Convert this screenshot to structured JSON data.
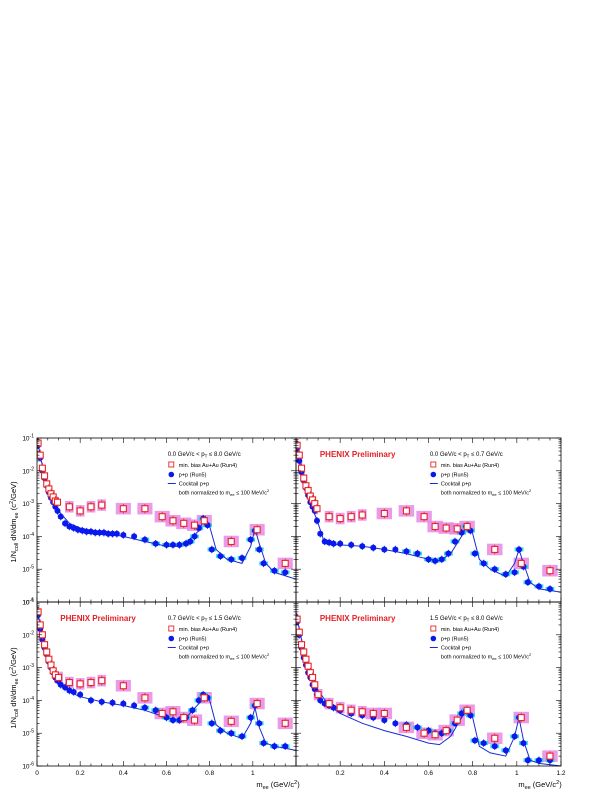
{
  "figure": {
    "ylabel_parts": [
      "1/N",
      "coll",
      " dN/dm",
      "ee",
      " (c",
      "2",
      "/GeV)"
    ],
    "xlabel_parts": [
      "m",
      "ee",
      " (GeV/c",
      "2",
      ")"
    ],
    "x_ticks": [
      "0",
      "0.2",
      "0.4",
      "0.6",
      "0.8",
      "1",
      "1.2"
    ],
    "y_ticks": [
      {
        "base": "10",
        "exp": "-1"
      },
      {
        "base": "10",
        "exp": "-2"
      },
      {
        "base": "10",
        "exp": "-3"
      },
      {
        "base": "10",
        "exp": "-4"
      },
      {
        "base": "10",
        "exp": "-5"
      },
      {
        "base": "10",
        "exp": "-6"
      }
    ]
  },
  "legend": {
    "auau": "min. bias Au+Au (Run4)",
    "pp": "p+p (Run5)",
    "cocktail": "Cocktail p+p",
    "norm_parts": [
      "both normalized to m",
      "ee",
      " ≤ 100 MeV/c",
      "2"
    ]
  },
  "colors": {
    "auau": "#e8262b",
    "auau_band": "#e58ae6",
    "pp": "#0a18ee",
    "pp_band": "#18d6e6",
    "cocktail": "#1a2bd6",
    "prelim": "#e31e24"
  },
  "chart_data": [
    {
      "type": "scatter",
      "panel": "top-left",
      "pt_range_parts": [
        "0.0 GeV/c < p",
        "T",
        " ≤ 8.0 GeV/c"
      ],
      "prelim": "",
      "xlim": [
        0,
        1.2
      ],
      "ylim": [
        1e-06,
        0.1
      ],
      "log_y": true,
      "series": [
        {
          "name": "min. bias Au+Au (Run4)",
          "x": [
            0.005,
            0.015,
            0.025,
            0.035,
            0.045,
            0.055,
            0.065,
            0.075,
            0.085,
            0.095,
            0.15,
            0.2,
            0.25,
            0.3,
            0.4,
            0.5,
            0.58,
            0.63,
            0.68,
            0.73,
            0.775,
            0.9,
            1.02,
            1.15
          ],
          "y": [
            0.07,
            0.03,
            0.012,
            0.007,
            0.004,
            0.0028,
            0.002,
            0.0016,
            0.0012,
            0.0011,
            0.0008,
            0.0006,
            0.0008,
            0.0009,
            0.0007,
            0.0007,
            0.0004,
            0.0003,
            0.00025,
            0.00022,
            0.0003,
            7e-05,
            0.00016,
            1.5e-05
          ]
        },
        {
          "name": "p+p (Run5)",
          "x": [
            0.005,
            0.015,
            0.025,
            0.035,
            0.045,
            0.055,
            0.065,
            0.075,
            0.085,
            0.095,
            0.11,
            0.13,
            0.15,
            0.17,
            0.19,
            0.21,
            0.23,
            0.25,
            0.27,
            0.29,
            0.31,
            0.33,
            0.35,
            0.37,
            0.4,
            0.45,
            0.5,
            0.55,
            0.6,
            0.63,
            0.66,
            0.69,
            0.71,
            0.73,
            0.75,
            0.77,
            0.79,
            0.81,
            0.85,
            0.9,
            0.95,
            0.99,
            1.01,
            1.03,
            1.05,
            1.1,
            1.15
          ],
          "y": [
            0.06,
            0.025,
            0.01,
            0.006,
            0.0035,
            0.0022,
            0.0015,
            0.0011,
            0.0008,
            0.0006,
            0.0004,
            0.00025,
            0.0002,
            0.00018,
            0.00016,
            0.00015,
            0.00014,
            0.00014,
            0.00013,
            0.00013,
            0.00013,
            0.00012,
            0.00012,
            0.00012,
            0.00011,
            0.0001,
            8e-05,
            6e-05,
            5.5e-05,
            5.5e-05,
            5.5e-05,
            6e-05,
            7e-05,
            0.0001,
            0.00018,
            0.00035,
            0.00022,
            4e-05,
            2.5e-05,
            2e-05,
            2.2e-05,
            8e-05,
            0.00015,
            4e-05,
            1.5e-05,
            9e-06,
            8e-06
          ]
        },
        {
          "name": "Cocktail p+p",
          "x": [
            0.0,
            0.02,
            0.05,
            0.1,
            0.15,
            0.2,
            0.3,
            0.4,
            0.5,
            0.6,
            0.65,
            0.7,
            0.75,
            0.78,
            0.8,
            0.83,
            0.88,
            0.95,
            0.99,
            1.01,
            1.03,
            1.06,
            1.1,
            1.2
          ],
          "y": [
            0.1,
            0.02,
            0.003,
            0.0006,
            0.00025,
            0.00018,
            0.00013,
            0.0001,
            7e-05,
            5e-05,
            5e-05,
            7e-05,
            0.00015,
            0.0004,
            0.0002,
            4e-05,
            2e-05,
            1.5e-05,
            5e-05,
            0.00017,
            6e-05,
            1.5e-05,
            8e-06,
            5e-06
          ]
        }
      ]
    },
    {
      "type": "scatter",
      "panel": "top-right",
      "pt_range_parts": [
        "0.0 GeV/c < p",
        "T",
        " ≤ 0.7 GeV/c"
      ],
      "prelim": "PHENIX Preliminary",
      "xlim": [
        0,
        1.2
      ],
      "ylim": [
        1e-06,
        0.1
      ],
      "log_y": true,
      "series": [
        {
          "name": "min. bias Au+Au (Run4)",
          "x": [
            0.005,
            0.015,
            0.025,
            0.035,
            0.045,
            0.055,
            0.065,
            0.075,
            0.085,
            0.095,
            0.15,
            0.2,
            0.25,
            0.3,
            0.4,
            0.5,
            0.58,
            0.63,
            0.68,
            0.73,
            0.775,
            0.9,
            1.02,
            1.15
          ],
          "y": [
            0.06,
            0.03,
            0.012,
            0.006,
            0.0035,
            0.0025,
            0.0017,
            0.0013,
            0.001,
            0.0007,
            0.0004,
            0.00035,
            0.0004,
            0.00045,
            0.0005,
            0.0006,
            0.0004,
            0.0002,
            0.00018,
            0.00017,
            0.0002,
            4e-05,
            1.5e-05,
            9e-06
          ]
        },
        {
          "name": "p+p (Run5)",
          "x": [
            0.005,
            0.015,
            0.025,
            0.035,
            0.045,
            0.055,
            0.065,
            0.075,
            0.085,
            0.095,
            0.11,
            0.13,
            0.15,
            0.17,
            0.2,
            0.25,
            0.3,
            0.35,
            0.4,
            0.45,
            0.5,
            0.55,
            0.6,
            0.63,
            0.66,
            0.69,
            0.72,
            0.75,
            0.77,
            0.79,
            0.81,
            0.85,
            0.9,
            0.95,
            0.99,
            1.01,
            1.03,
            1.05,
            1.1,
            1.15
          ],
          "y": [
            0.05,
            0.02,
            0.009,
            0.005,
            0.003,
            0.0018,
            0.0011,
            0.0008,
            0.0006,
            0.0003,
            0.00012,
            7e-05,
            6.5e-05,
            6e-05,
            6e-05,
            5.5e-05,
            5e-05,
            4.5e-05,
            4e-05,
            4e-05,
            3.5e-05,
            3e-05,
            2e-05,
            1.8e-05,
            2e-05,
            3e-05,
            7e-05,
            0.00013,
            0.0002,
            0.00015,
            3e-05,
            1.5e-05,
            1e-05,
            7e-06,
            8e-06,
            4e-05,
            1.2e-05,
            4e-06,
            3e-06,
            2.5e-06
          ]
        },
        {
          "name": "Cocktail p+p",
          "x": [
            0.0,
            0.02,
            0.05,
            0.1,
            0.13,
            0.2,
            0.3,
            0.4,
            0.5,
            0.6,
            0.65,
            0.7,
            0.75,
            0.78,
            0.8,
            0.83,
            0.88,
            0.95,
            0.99,
            1.01,
            1.03,
            1.06,
            1.1,
            1.2
          ],
          "y": [
            0.08,
            0.015,
            0.002,
            0.00025,
            6e-05,
            5.5e-05,
            5e-05,
            4e-05,
            3e-05,
            2e-05,
            1.8e-05,
            3e-05,
            0.0001,
            0.00025,
            0.00012,
            2e-05,
            1e-05,
            6e-06,
            1.5e-05,
            4e-05,
            1.5e-05,
            4e-06,
            2.5e-06,
            2e-06
          ]
        }
      ]
    },
    {
      "type": "scatter",
      "panel": "bottom-left",
      "pt_range_parts": [
        "0.7 GeV/c < p",
        "T",
        " ≤ 1.5 GeV/c"
      ],
      "prelim": "PHENIX Preliminary",
      "xlim": [
        0,
        1.2
      ],
      "ylim": [
        1e-06,
        0.1
      ],
      "log_y": true,
      "series": [
        {
          "name": "min. bias Au+Au (Run4)",
          "x": [
            0.005,
            0.015,
            0.025,
            0.035,
            0.045,
            0.055,
            0.065,
            0.075,
            0.085,
            0.1,
            0.15,
            0.2,
            0.25,
            0.3,
            0.4,
            0.5,
            0.58,
            0.63,
            0.68,
            0.73,
            0.775,
            0.9,
            1.02,
            1.15
          ],
          "y": [
            0.05,
            0.02,
            0.01,
            0.005,
            0.003,
            0.0018,
            0.0012,
            0.0008,
            0.0006,
            0.0005,
            0.00035,
            0.00032,
            0.00035,
            0.0004,
            0.00028,
            0.00012,
            4e-05,
            4.5e-05,
            3e-05,
            2.5e-05,
            0.00012,
            2.3e-05,
            8e-05,
            2e-05
          ]
        },
        {
          "name": "p+p (Run5)",
          "x": [
            0.005,
            0.015,
            0.025,
            0.035,
            0.045,
            0.055,
            0.065,
            0.075,
            0.085,
            0.095,
            0.11,
            0.13,
            0.15,
            0.17,
            0.2,
            0.25,
            0.3,
            0.35,
            0.4,
            0.45,
            0.5,
            0.55,
            0.6,
            0.63,
            0.66,
            0.69,
            0.72,
            0.75,
            0.77,
            0.79,
            0.81,
            0.85,
            0.9,
            0.95,
            0.99,
            1.01,
            1.03,
            1.05,
            1.1,
            1.15
          ],
          "y": [
            0.04,
            0.015,
            0.007,
            0.004,
            0.0025,
            0.0015,
            0.001,
            0.0007,
            0.0005,
            0.0004,
            0.0003,
            0.00025,
            0.0002,
            0.00018,
            0.00015,
            0.0001,
            9e-05,
            8.5e-05,
            8e-05,
            7e-05,
            6e-05,
            5e-05,
            3e-05,
            2.5e-05,
            2.5e-05,
            3e-05,
            5e-05,
            0.0001,
            0.00015,
            0.00012,
            2e-05,
            1.2e-05,
            1e-05,
            8e-06,
            3e-05,
            7e-05,
            2e-05,
            5e-06,
            4e-06,
            4e-06
          ]
        },
        {
          "name": "Cocktail p+p",
          "x": [
            0.0,
            0.02,
            0.05,
            0.1,
            0.15,
            0.2,
            0.3,
            0.4,
            0.5,
            0.6,
            0.65,
            0.7,
            0.75,
            0.78,
            0.8,
            0.83,
            0.88,
            0.95,
            0.99,
            1.01,
            1.03,
            1.06,
            1.1,
            1.2
          ],
          "y": [
            0.07,
            0.012,
            0.002,
            0.0004,
            0.00018,
            0.00013,
            9e-05,
            7e-05,
            5e-05,
            3e-05,
            2.5e-05,
            3.5e-05,
            8e-05,
            0.00014,
            0.0001,
            1.8e-05,
            1e-05,
            7e-06,
            2e-05,
            6e-05,
            1.5e-05,
            5e-06,
            4e-06,
            3e-06
          ]
        }
      ]
    },
    {
      "type": "scatter",
      "panel": "bottom-right",
      "pt_range_parts": [
        "1.5 GeV/c < p",
        "T",
        " ≤ 8.0 GeV/c"
      ],
      "prelim": "PHENIX Preliminary",
      "xlim": [
        0,
        1.2
      ],
      "ylim": [
        1e-06,
        0.1
      ],
      "log_y": true,
      "series": [
        {
          "name": "min. bias Au+Au (Run4)",
          "x": [
            0.005,
            0.015,
            0.025,
            0.035,
            0.045,
            0.055,
            0.065,
            0.075,
            0.085,
            0.1,
            0.15,
            0.2,
            0.25,
            0.3,
            0.35,
            0.4,
            0.5,
            0.58,
            0.63,
            0.68,
            0.73,
            0.775,
            0.9,
            1.02,
            1.15
          ],
          "y": [
            0.03,
            0.012,
            0.005,
            0.003,
            0.0018,
            0.0011,
            0.0007,
            0.0005,
            0.0003,
            0.00015,
            8e-05,
            6e-05,
            5e-05,
            4.5e-05,
            4e-05,
            4e-05,
            1.5e-05,
            1e-05,
            9e-06,
            1.2e-05,
            2.5e-05,
            5e-05,
            7e-06,
            3e-05,
            2e-06
          ]
        },
        {
          "name": "p+p (Run5)",
          "x": [
            0.005,
            0.015,
            0.025,
            0.035,
            0.045,
            0.055,
            0.065,
            0.075,
            0.085,
            0.095,
            0.11,
            0.13,
            0.15,
            0.17,
            0.2,
            0.25,
            0.3,
            0.35,
            0.4,
            0.45,
            0.5,
            0.55,
            0.6,
            0.63,
            0.66,
            0.69,
            0.72,
            0.75,
            0.77,
            0.79,
            0.81,
            0.85,
            0.9,
            0.95,
            0.99,
            1.01,
            1.03,
            1.05,
            1.1,
            1.15
          ],
          "y": [
            0.025,
            0.01,
            0.004,
            0.002,
            0.0012,
            0.0007,
            0.0005,
            0.0003,
            0.00022,
            0.00015,
            0.0001,
            8e-05,
            7e-05,
            6e-05,
            5e-05,
            4e-05,
            3.5e-05,
            3e-05,
            2.5e-05,
            2e-05,
            1.8e-05,
            1.5e-05,
            1.2e-05,
            1e-05,
            1e-05,
            1.2e-05,
            2e-05,
            4e-05,
            5e-05,
            3.5e-05,
            6e-06,
            5e-06,
            4e-06,
            3e-06,
            8e-06,
            3e-05,
            5e-06,
            1.5e-06,
            1.5e-06,
            1.5e-06
          ]
        },
        {
          "name": "Cocktail p+p",
          "x": [
            0.0,
            0.02,
            0.05,
            0.1,
            0.15,
            0.2,
            0.3,
            0.4,
            0.5,
            0.6,
            0.65,
            0.7,
            0.75,
            0.78,
            0.8,
            0.83,
            0.88,
            0.95,
            0.99,
            1.01,
            1.03,
            1.06,
            1.1,
            1.2
          ],
          "y": [
            0.05,
            0.01,
            0.0015,
            0.0002,
            7e-05,
            4e-05,
            2e-05,
            1.2e-05,
            8e-06,
            5e-06,
            4.5e-06,
            8e-06,
            3e-05,
            6e-05,
            3e-05,
            4e-06,
            2.5e-06,
            2e-06,
            8e-06,
            3e-05,
            6e-06,
            1.5e-06,
            1.2e-06,
            1e-06
          ]
        }
      ]
    }
  ]
}
